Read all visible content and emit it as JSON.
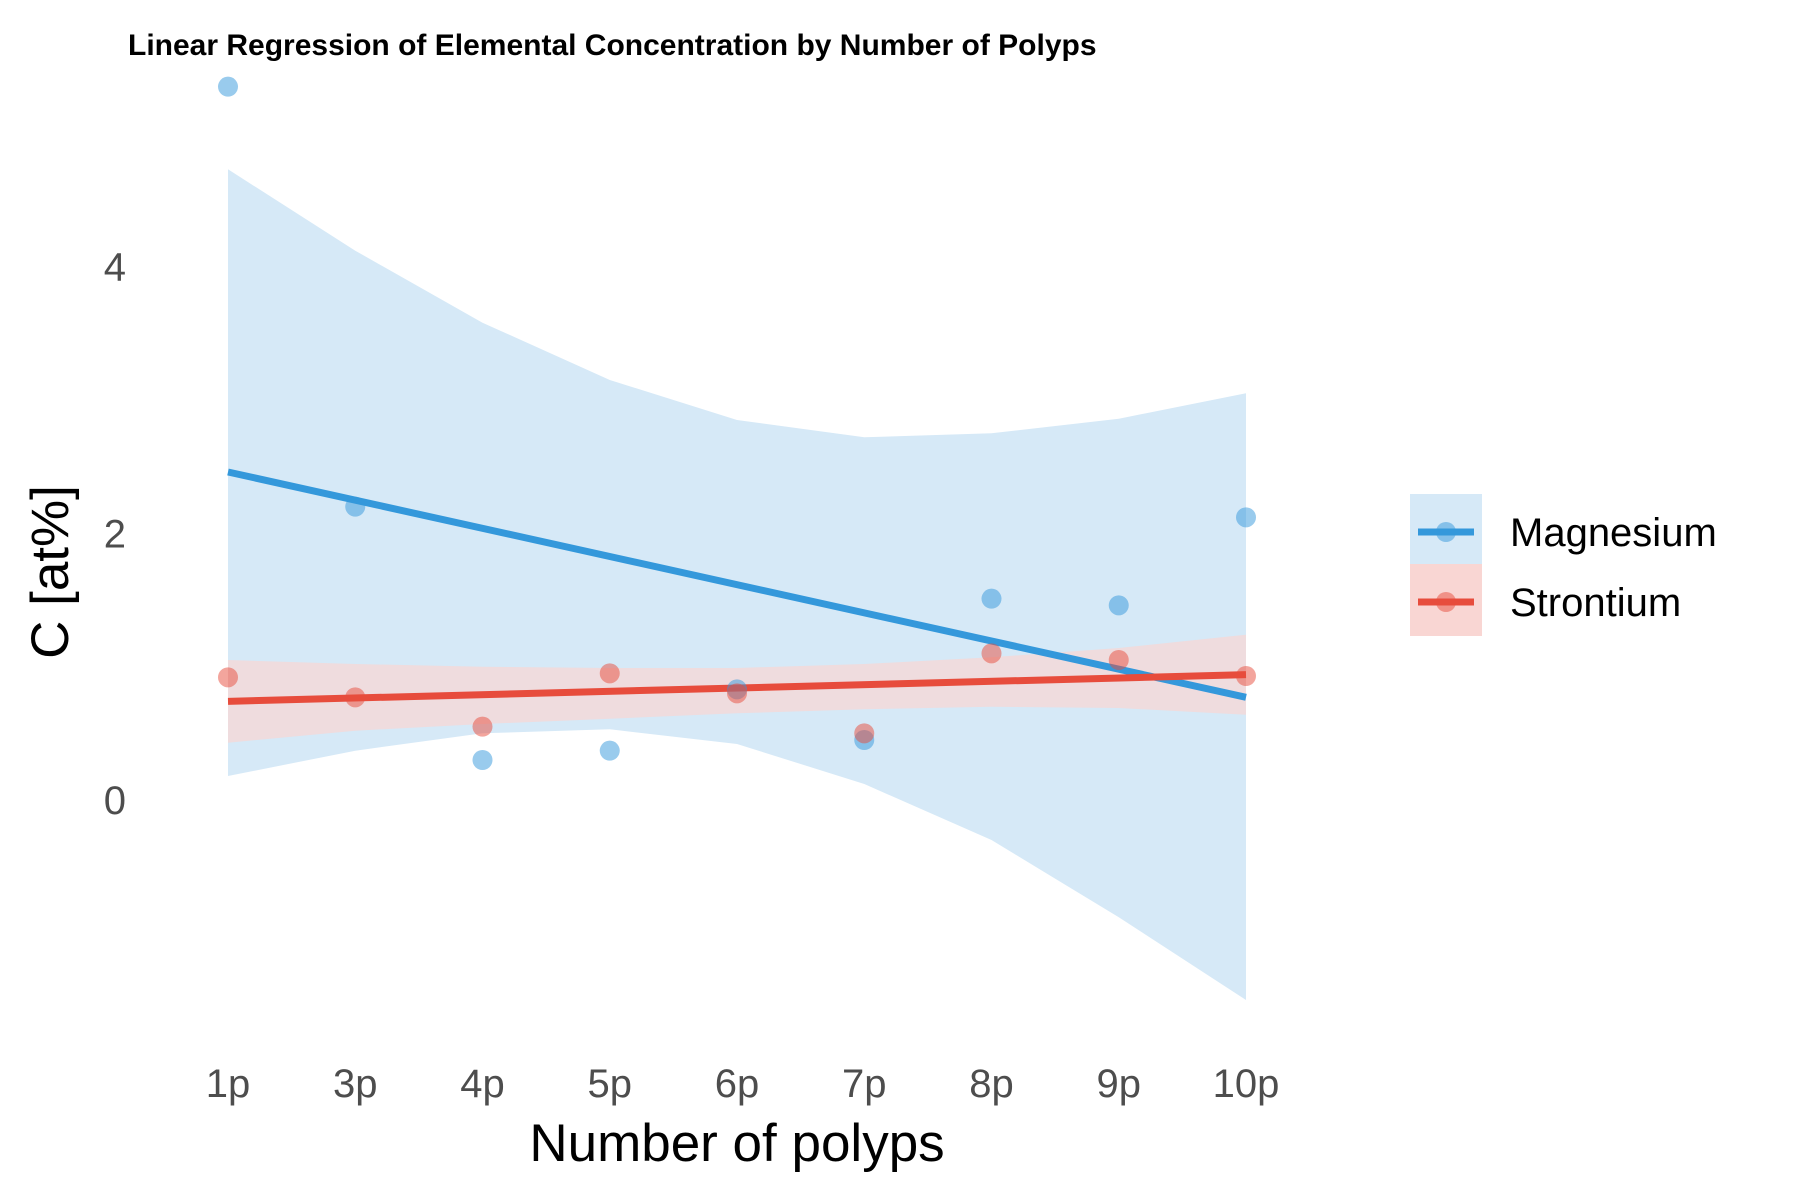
{
  "chart_data": {
    "type": "scatter",
    "title": "Linear Regression of Elemental Concentration by Number of Polyps",
    "xlabel": "Number of polyps",
    "ylabel": "C [at%]",
    "categories": [
      "1p",
      "3p",
      "4p",
      "5p",
      "6p",
      "7p",
      "8p",
      "9p",
      "10p"
    ],
    "y_ticks": [
      0,
      2,
      4
    ],
    "ylim": [
      -1.8,
      5.55
    ],
    "grid": false,
    "legend_position": "right",
    "series": [
      {
        "name": "Magnesium",
        "color": "#3498db",
        "ribbon_color": "#d6e9f7",
        "values": [
          5.35,
          2.2,
          0.3,
          0.37,
          0.83,
          0.45,
          1.51,
          1.46,
          2.12
        ],
        "fit_line": [
          2.46,
          0.77
        ],
        "ribbon_upper": [
          4.73,
          4.12,
          3.58,
          3.15,
          2.85,
          2.72,
          2.75,
          2.86,
          3.05
        ],
        "ribbon_lower": [
          0.18,
          0.37,
          0.5,
          0.53,
          0.42,
          0.12,
          -0.3,
          -0.88,
          -1.5
        ]
      },
      {
        "name": "Strontium",
        "color": "#e74c3c",
        "ribbon_color": "#f9d6d3",
        "values": [
          0.92,
          0.77,
          0.55,
          0.95,
          0.8,
          0.5,
          1.1,
          1.05,
          0.93
        ],
        "fit_line": [
          0.74,
          0.94
        ],
        "ribbon_upper": [
          1.05,
          1.02,
          1.0,
          0.99,
          0.99,
          1.02,
          1.07,
          1.14,
          1.24
        ],
        "ribbon_lower": [
          0.43,
          0.52,
          0.57,
          0.61,
          0.65,
          0.68,
          0.7,
          0.69,
          0.64
        ]
      }
    ]
  }
}
